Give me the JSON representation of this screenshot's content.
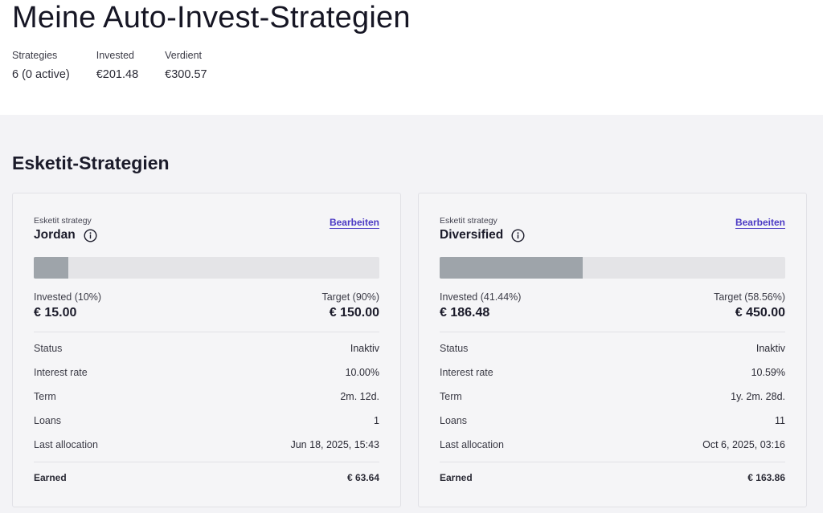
{
  "header": {
    "title": "Meine Auto-Invest-Strategien",
    "stats": [
      {
        "label": "Strategies",
        "value": "6 (0 active)"
      },
      {
        "label": "Invested",
        "value": "€201.48"
      },
      {
        "label": "Verdient",
        "value": "€300.57"
      }
    ]
  },
  "section": {
    "title": "Esketit-Strategien"
  },
  "cards": [
    {
      "kicker": "Esketit strategy",
      "name": "Jordan",
      "edit_label": "Bearbeiten",
      "invested_fraction": 0.1,
      "invested_label": "Invested (10%)",
      "invested_value": "€ 15.00",
      "target_label": "Target (90%)",
      "target_value": "€ 150.00",
      "rows": [
        {
          "label": "Status",
          "value": "Inaktiv"
        },
        {
          "label": "Interest rate",
          "value": "10.00%"
        },
        {
          "label": "Term",
          "value": "2m. 12d."
        },
        {
          "label": "Loans",
          "value": "1"
        },
        {
          "label": "Last allocation",
          "value": "Jun 18, 2025, 15:43"
        }
      ],
      "earned_label": "Earned",
      "earned_value": "€ 63.64"
    },
    {
      "kicker": "Esketit strategy",
      "name": "Diversified",
      "edit_label": "Bearbeiten",
      "invested_fraction": 0.4144,
      "invested_label": "Invested (41.44%)",
      "invested_value": "€ 186.48",
      "target_label": "Target (58.56%)",
      "target_value": "€ 450.00",
      "rows": [
        {
          "label": "Status",
          "value": "Inaktiv"
        },
        {
          "label": "Interest rate",
          "value": "10.59%"
        },
        {
          "label": "Term",
          "value": "1y. 2m. 28d."
        },
        {
          "label": "Loans",
          "value": "11"
        },
        {
          "label": "Last allocation",
          "value": "Oct 6, 2025, 03:16"
        }
      ],
      "earned_label": "Earned",
      "earned_value": "€ 163.86"
    }
  ],
  "colors": {
    "accent_link": "#4b39c4",
    "bar_fill": "#9ea4aa",
    "bar_track": "#e4e4e7",
    "section_bg": "#f3f3f6"
  },
  "icons": {
    "info": "info-circle-icon"
  }
}
